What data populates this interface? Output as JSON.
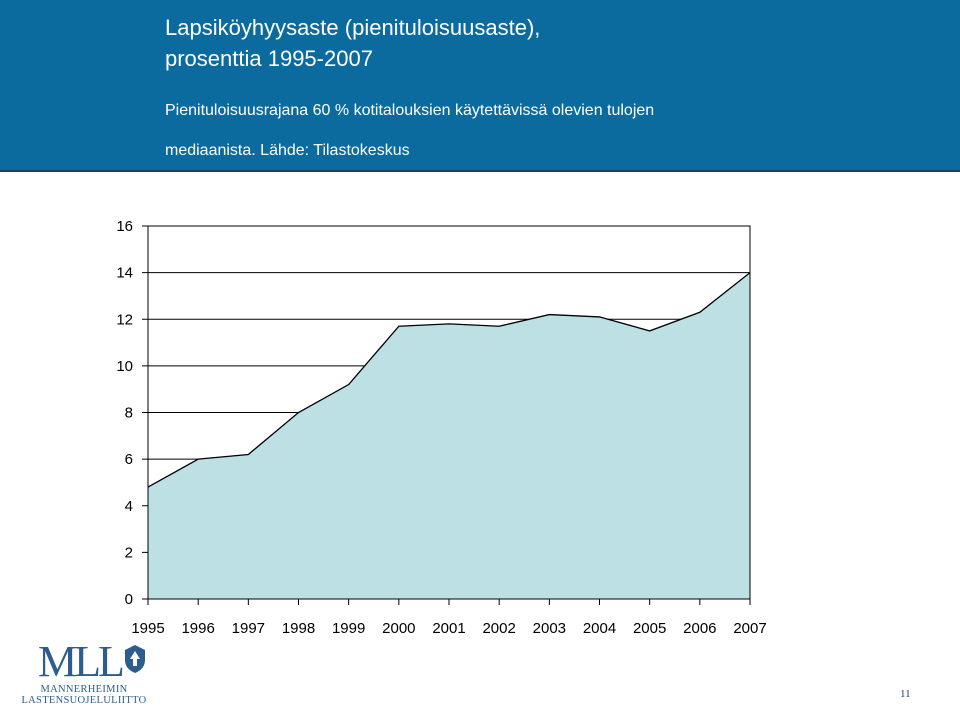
{
  "header": {
    "title_line1": "Lapsiköyhyysaste (pienituloisuusaste),",
    "title_line2": "prosenttia 1995-2007",
    "subtitle_line1": "Pienituloisuusrajana 60 % kotitalouksien käytettävissä olevien tulojen",
    "subtitle_line2": "mediaanista. Lähde: Tilastokeskus"
  },
  "chart_data": {
    "type": "area",
    "title": "Lapsiköyhyysaste (pienituloisuusaste), prosenttia 1995-2007",
    "xlabel": "",
    "ylabel": "",
    "categories": [
      "1995",
      "1996",
      "1997",
      "1998",
      "1999",
      "2000",
      "2001",
      "2002",
      "2003",
      "2004",
      "2005",
      "2006",
      "2007"
    ],
    "values": [
      4.8,
      6.0,
      6.2,
      8.0,
      9.2,
      11.7,
      11.8,
      11.7,
      12.2,
      12.1,
      11.5,
      12.3,
      14.0
    ],
    "ylim": [
      0,
      16
    ],
    "yticks": [
      0,
      2,
      4,
      6,
      8,
      10,
      12,
      14,
      16
    ],
    "grid": "horizontal",
    "fill_color": "#bde0e4",
    "line_color": "#000000"
  },
  "logo": {
    "mark": "MLL",
    "line1": "MANNERHEIMIN",
    "line2": "LASTENSUOJELULIITTO"
  },
  "page_number": "11",
  "colors": {
    "header_bg": "#0b6b9f",
    "brand": "#2e5d8d"
  }
}
